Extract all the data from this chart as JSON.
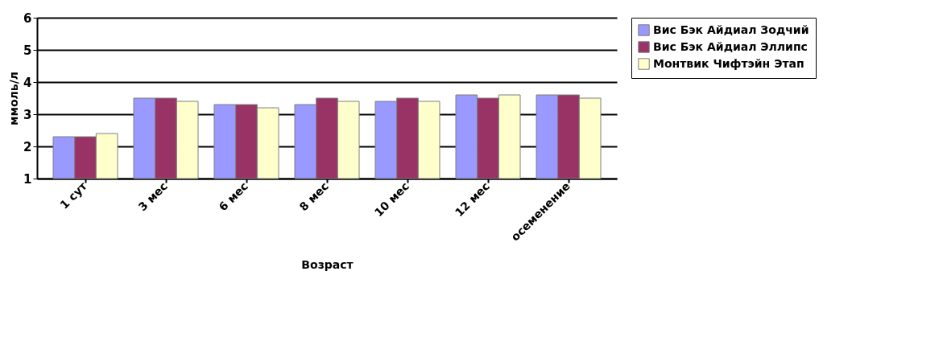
{
  "chart_data": {
    "type": "bar",
    "xlabel": "Возраст",
    "ylabel": "ммоль/л",
    "categories": [
      "1 сут",
      "3 мес",
      "6 мес",
      "8 мес",
      "10 мес",
      "12 мес",
      "осеменение"
    ],
    "series": [
      {
        "name": "Вис Бэк Айдиал Зодчий",
        "color": "#9999ff",
        "values": [
          2.3,
          3.5,
          3.3,
          3.3,
          3.4,
          3.6,
          3.6
        ]
      },
      {
        "name": "Вис Бэк Айдиал Эллипс",
        "color": "#993366",
        "values": [
          2.3,
          3.5,
          3.3,
          3.5,
          3.5,
          3.5,
          3.6
        ]
      },
      {
        "name": "Монтвик Чифтэйн Этап",
        "color": "#ffffcc",
        "values": [
          2.4,
          3.4,
          3.2,
          3.4,
          3.4,
          3.6,
          3.5
        ]
      }
    ],
    "ylim": [
      1,
      6
    ],
    "yticks": [
      1,
      2,
      3,
      4,
      5,
      6
    ],
    "grid": "y",
    "legend": "right"
  }
}
